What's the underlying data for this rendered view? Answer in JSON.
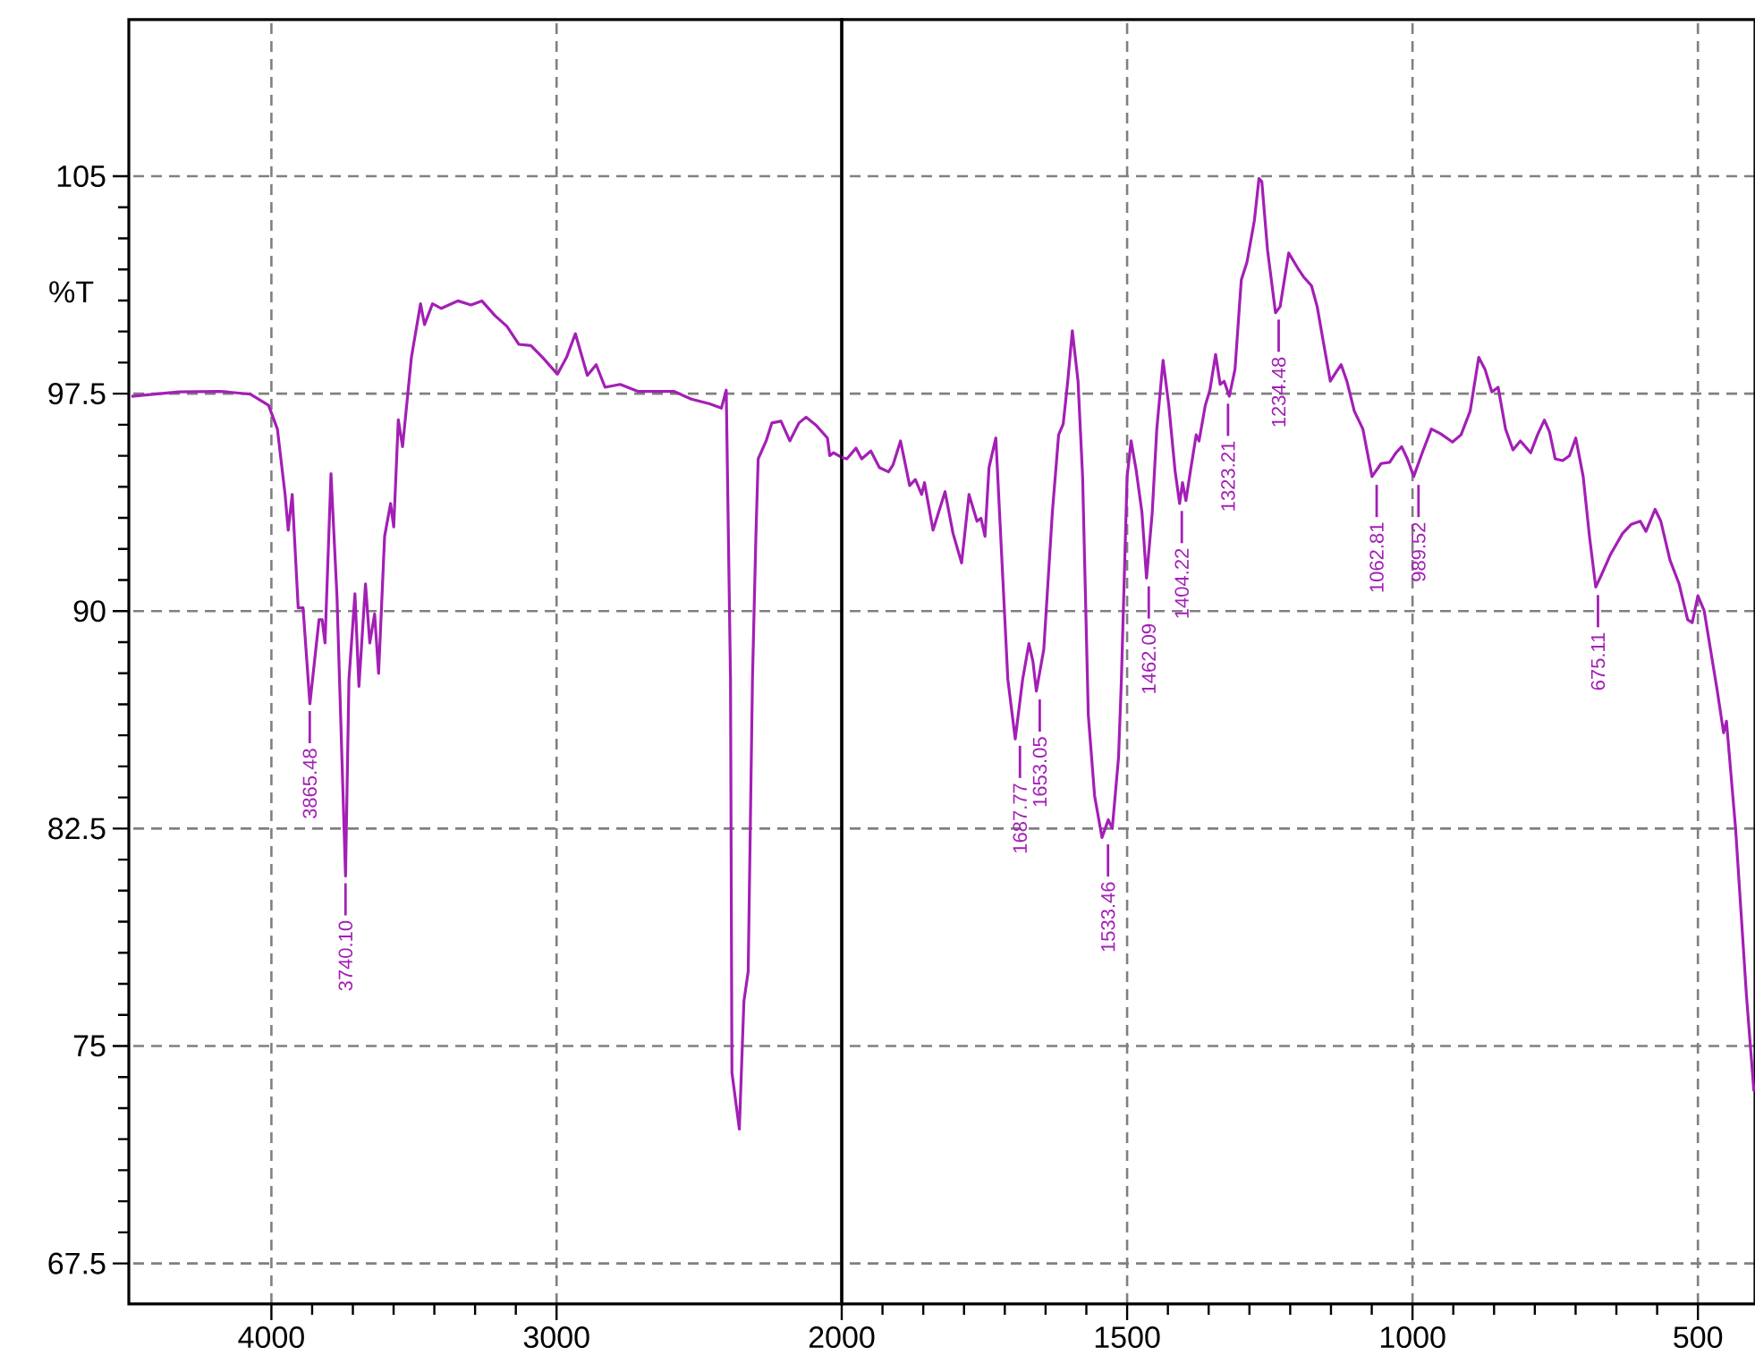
{
  "chart_data": [
    {
      "type": "line",
      "ylabel": "%T",
      "xlim": [
        4500,
        2000
      ],
      "xticks": [
        4000,
        3000
      ],
      "ylim": [
        66.1,
        110.4
      ],
      "yticks": [
        67.5,
        75,
        82.5,
        90,
        97.5,
        105
      ],
      "grid": true,
      "series": [
        {
          "color": "#a31fb5",
          "x": [
            4491,
            4324,
            4178,
            4073,
            4010,
            3979,
            3952,
            3941,
            3927,
            3906,
            3889,
            3865,
            3833,
            3822,
            3812,
            3791,
            3770,
            3740,
            3728,
            3707,
            3693,
            3670,
            3655,
            3638,
            3624,
            3603,
            3582,
            3571,
            3555,
            3540,
            3509,
            3477,
            3463,
            3435,
            3404,
            3346,
            3300,
            3262,
            3216,
            3174,
            3132,
            3090,
            3049,
            2997,
            2965,
            2934,
            2892,
            2861,
            2830,
            2777,
            2715,
            2589,
            2527,
            2463,
            2422,
            2405,
            2390,
            2385,
            2359,
            2349,
            2343,
            2328,
            2313,
            2301,
            2293,
            2265,
            2245,
            2213,
            2182,
            2150,
            2125,
            2088,
            2050,
            2042,
            2029,
            2000
          ],
          "values": [
            97.41,
            97.56,
            97.58,
            97.48,
            97.1,
            96.28,
            94.02,
            92.79,
            94.02,
            90.11,
            90.11,
            86.8,
            89.7,
            89.7,
            88.9,
            94.74,
            90.5,
            80.86,
            87.65,
            90.6,
            87.4,
            90.94,
            88.9,
            89.9,
            87.85,
            92.58,
            93.71,
            92.9,
            96.6,
            95.67,
            98.75,
            100.6,
            99.88,
            100.6,
            100.44,
            100.7,
            100.56,
            100.7,
            100.19,
            99.82,
            99.2,
            99.16,
            98.75,
            98.17,
            98.75,
            99.57,
            98.13,
            98.5,
            97.72,
            97.82,
            97.58,
            97.58,
            97.31,
            97.15,
            97.0,
            97.62,
            87.65,
            74.08,
            72.13,
            74.9,
            76.54,
            77.57,
            87.65,
            92.58,
            95.25,
            95.87,
            96.49,
            96.55,
            95.87,
            96.49,
            96.69,
            96.39,
            95.97,
            95.36,
            95.46,
            95.3
          ]
        }
      ],
      "annotations": [
        {
          "text": "3865.48",
          "x": 3865.48,
          "y": 86.8
        },
        {
          "text": "3740.10",
          "x": 3740.1,
          "y": 80.86
        }
      ]
    },
    {
      "type": "line",
      "xlim": [
        2000,
        400
      ],
      "xticks": [
        2000,
        1500,
        1000,
        500
      ],
      "ylim": [
        66.1,
        110.4
      ],
      "yticks": [
        67.5,
        75,
        82.5,
        90,
        97.5,
        105
      ],
      "grid": true,
      "tick_labels": "x",
      "series": [
        {
          "color": "#a31fb5",
          "x": [
            2000,
            1991,
            1975,
            1965,
            1949,
            1934,
            1918,
            1910,
            1897,
            1881,
            1871,
            1860,
            1855,
            1840,
            1819,
            1805,
            1790,
            1777,
            1763,
            1756,
            1749,
            1742,
            1730,
            1709,
            1696,
            1683,
            1672,
            1665,
            1659,
            1646,
            1631,
            1620,
            1612,
            1604,
            1596,
            1586,
            1578,
            1568,
            1557,
            1544,
            1533,
            1526,
            1515,
            1510,
            1500,
            1493,
            1484,
            1474,
            1466,
            1456,
            1448,
            1437,
            1427,
            1416,
            1408,
            1403,
            1397,
            1389,
            1379,
            1374,
            1363,
            1355,
            1345,
            1337,
            1330,
            1321,
            1311,
            1300,
            1290,
            1277,
            1269,
            1264,
            1254,
            1240,
            1232,
            1217,
            1201,
            1191,
            1177,
            1167,
            1157,
            1144,
            1134,
            1125,
            1115,
            1102,
            1087,
            1071,
            1055,
            1040,
            1029,
            1019,
            1009,
            998,
            983,
            967,
            951,
            930,
            915,
            899,
            884,
            873,
            861,
            850,
            837,
            824,
            811,
            793,
            781,
            769,
            760,
            750,
            737,
            725,
            714,
            701,
            690,
            679,
            669,
            653,
            632,
            617,
            601,
            591,
            575,
            565,
            549,
            533,
            518,
            510,
            500,
            489,
            478,
            466,
            455,
            450,
            434,
            415,
            402,
            400
          ],
          "values": [
            95.3,
            95.25,
            95.62,
            95.25,
            95.52,
            94.95,
            94.8,
            95.05,
            95.87,
            94.33,
            94.54,
            94.02,
            94.43,
            92.79,
            94.12,
            92.68,
            91.66,
            94.02,
            93.1,
            93.2,
            92.58,
            94.95,
            95.97,
            87.65,
            85.59,
            87.65,
            88.88,
            88.26,
            87.24,
            88.68,
            93.4,
            96.08,
            96.45,
            97.93,
            99.67,
            97.93,
            94.64,
            86.41,
            83.63,
            82.19,
            82.8,
            82.5,
            84.96,
            87.65,
            94.64,
            95.87,
            94.84,
            93.4,
            91.14,
            93.4,
            96.28,
            98.65,
            97.1,
            94.84,
            93.71,
            94.43,
            93.81,
            94.84,
            96.08,
            95.87,
            97.1,
            97.62,
            98.85,
            97.82,
            97.93,
            97.41,
            98.34,
            101.42,
            102.04,
            103.48,
            104.92,
            104.81,
            102.45,
            100.29,
            100.5,
            102.35,
            101.83,
            101.53,
            101.22,
            100.5,
            99.37,
            97.93,
            98.24,
            98.5,
            97.93,
            96.9,
            96.28,
            94.64,
            95.09,
            95.13,
            95.46,
            95.67,
            95.25,
            94.64,
            95.46,
            96.28,
            96.12,
            95.83,
            96.08,
            96.9,
            98.75,
            98.34,
            97.56,
            97.72,
            96.28,
            95.56,
            95.87,
            95.46,
            96.08,
            96.59,
            96.18,
            95.25,
            95.19,
            95.36,
            95.97,
            94.64,
            92.58,
            90.83,
            91.25,
            91.96,
            92.68,
            92.99,
            93.1,
            92.75,
            93.51,
            93.1,
            91.76,
            90.94,
            89.7,
            89.6,
            90.53,
            90.01,
            88.68,
            87.24,
            85.8,
            86.2,
            82.5,
            76.75,
            73.46,
            73.5
          ]
        }
      ],
      "annotations": [
        {
          "text": "1687.77",
          "x": 1687.77,
          "y": 85.6
        },
        {
          "text": "1653.05",
          "x": 1653.05,
          "y": 87.2
        },
        {
          "text": "1533.46",
          "x": 1533.46,
          "y": 82.2
        },
        {
          "text": "1462.09",
          "x": 1462.09,
          "y": 91.1
        },
        {
          "text": "1404.22",
          "x": 1404.22,
          "y": 93.7
        },
        {
          "text": "1323.21",
          "x": 1323.21,
          "y": 97.4
        },
        {
          "text": "1234.48",
          "x": 1234.48,
          "y": 100.3
        },
        {
          "text": "1062.81",
          "x": 1062.81,
          "y": 94.6
        },
        {
          "text": "989.52",
          "x": 989.52,
          "y": 94.6
        },
        {
          "text": "675.11",
          "x": 675.11,
          "y": 90.8
        }
      ]
    }
  ]
}
